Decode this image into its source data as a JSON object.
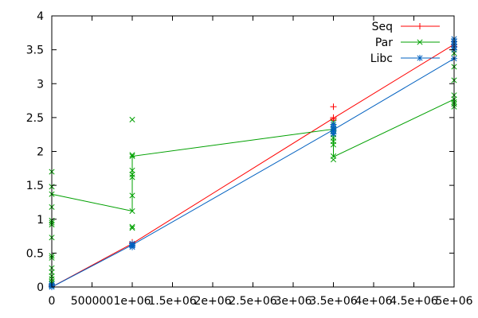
{
  "colors": {
    "Seq": "#ff0000",
    "Par": "#00a000",
    "Libc": "#0060c0",
    "axis": "#000000",
    "tick": "#000000"
  },
  "chart_data": {
    "type": "line",
    "title": "",
    "xlabel": "",
    "ylabel": "",
    "xlim": [
      0,
      5000000
    ],
    "ylim": [
      0,
      4
    ],
    "grid": false,
    "legend_position": "top-right",
    "x_tick_values": [
      0,
      500000,
      1000000,
      1500000,
      2000000,
      2500000,
      3000000,
      3500000,
      4000000,
      4500000,
      5000000
    ],
    "x_tick_labels": [
      "0",
      "500000",
      "1e+06",
      "1.5e+06",
      "2e+06",
      "2.5e+06",
      "3e+06",
      "3.5e+06",
      "4e+06",
      "4.5e+06",
      "5e+06"
    ],
    "y_tick_values": [
      0,
      0.5,
      1,
      1.5,
      2,
      2.5,
      3,
      3.5,
      4
    ],
    "y_tick_labels": [
      "0",
      "0.5",
      "1",
      "1.5",
      "2",
      "2.5",
      "3",
      "3.5",
      "4"
    ],
    "series": [
      {
        "name": "Seq",
        "marker": "plus",
        "line": [
          [
            0,
            0
          ],
          [
            1000000,
            0.64
          ],
          [
            3500000,
            2.49
          ],
          [
            5000000,
            3.58
          ]
        ],
        "points": [
          [
            0,
            0.0
          ],
          [
            0,
            0.01
          ],
          [
            0,
            0.02
          ],
          [
            1000000,
            0.62
          ],
          [
            1000000,
            0.64
          ],
          [
            1000000,
            0.66
          ],
          [
            3500000,
            2.46
          ],
          [
            3500000,
            2.48
          ],
          [
            3500000,
            2.5
          ],
          [
            3500000,
            2.66
          ],
          [
            5000000,
            3.55
          ],
          [
            5000000,
            3.58
          ],
          [
            5000000,
            3.62
          ]
        ]
      },
      {
        "name": "Par",
        "marker": "cross",
        "line": [
          [
            0,
            1.37
          ],
          [
            1000000,
            1.12
          ],
          [
            1000000,
            1.93
          ],
          [
            3500000,
            2.33
          ],
          [
            3500000,
            1.92
          ],
          [
            5000000,
            2.77
          ]
        ],
        "points": [
          [
            0,
            0.02
          ],
          [
            0,
            0.05
          ],
          [
            0,
            0.08
          ],
          [
            0,
            0.12
          ],
          [
            0,
            0.16
          ],
          [
            0,
            0.22
          ],
          [
            0,
            0.28
          ],
          [
            0,
            0.43
          ],
          [
            0,
            0.46
          ],
          [
            0,
            0.73
          ],
          [
            0,
            0.92
          ],
          [
            0,
            0.95
          ],
          [
            0,
            0.98
          ],
          [
            0,
            1.18
          ],
          [
            0,
            1.37
          ],
          [
            0,
            1.48
          ],
          [
            0,
            1.7
          ],
          [
            1000000,
            0.87
          ],
          [
            1000000,
            0.89
          ],
          [
            1000000,
            1.12
          ],
          [
            1000000,
            1.35
          ],
          [
            1000000,
            1.62
          ],
          [
            1000000,
            1.66
          ],
          [
            1000000,
            1.72
          ],
          [
            1000000,
            1.93
          ],
          [
            1000000,
            1.95
          ],
          [
            1000000,
            2.47
          ],
          [
            3500000,
            1.88
          ],
          [
            3500000,
            1.93
          ],
          [
            3500000,
            2.1
          ],
          [
            3500000,
            2.15
          ],
          [
            3500000,
            2.2
          ],
          [
            3500000,
            2.25
          ],
          [
            3500000,
            2.3
          ],
          [
            3500000,
            2.34
          ],
          [
            3500000,
            2.43
          ],
          [
            5000000,
            2.66
          ],
          [
            5000000,
            2.7
          ],
          [
            5000000,
            2.73
          ],
          [
            5000000,
            2.77
          ],
          [
            5000000,
            2.83
          ],
          [
            5000000,
            3.05
          ],
          [
            5000000,
            3.25
          ],
          [
            5000000,
            3.45
          ]
        ]
      },
      {
        "name": "Libc",
        "marker": "star",
        "line": [
          [
            0,
            0
          ],
          [
            1000000,
            0.62
          ],
          [
            3500000,
            2.32
          ],
          [
            5000000,
            3.37
          ]
        ],
        "points": [
          [
            0,
            0.0
          ],
          [
            0,
            0.02
          ],
          [
            0,
            0.04
          ],
          [
            1000000,
            0.59
          ],
          [
            1000000,
            0.61
          ],
          [
            1000000,
            0.62
          ],
          [
            1000000,
            0.64
          ],
          [
            3500000,
            2.26
          ],
          [
            3500000,
            2.3
          ],
          [
            3500000,
            2.32
          ],
          [
            3500000,
            2.36
          ],
          [
            3500000,
            2.4
          ],
          [
            5000000,
            3.37
          ],
          [
            5000000,
            3.5
          ],
          [
            5000000,
            3.54
          ],
          [
            5000000,
            3.58
          ],
          [
            5000000,
            3.62
          ],
          [
            5000000,
            3.66
          ]
        ]
      }
    ]
  }
}
